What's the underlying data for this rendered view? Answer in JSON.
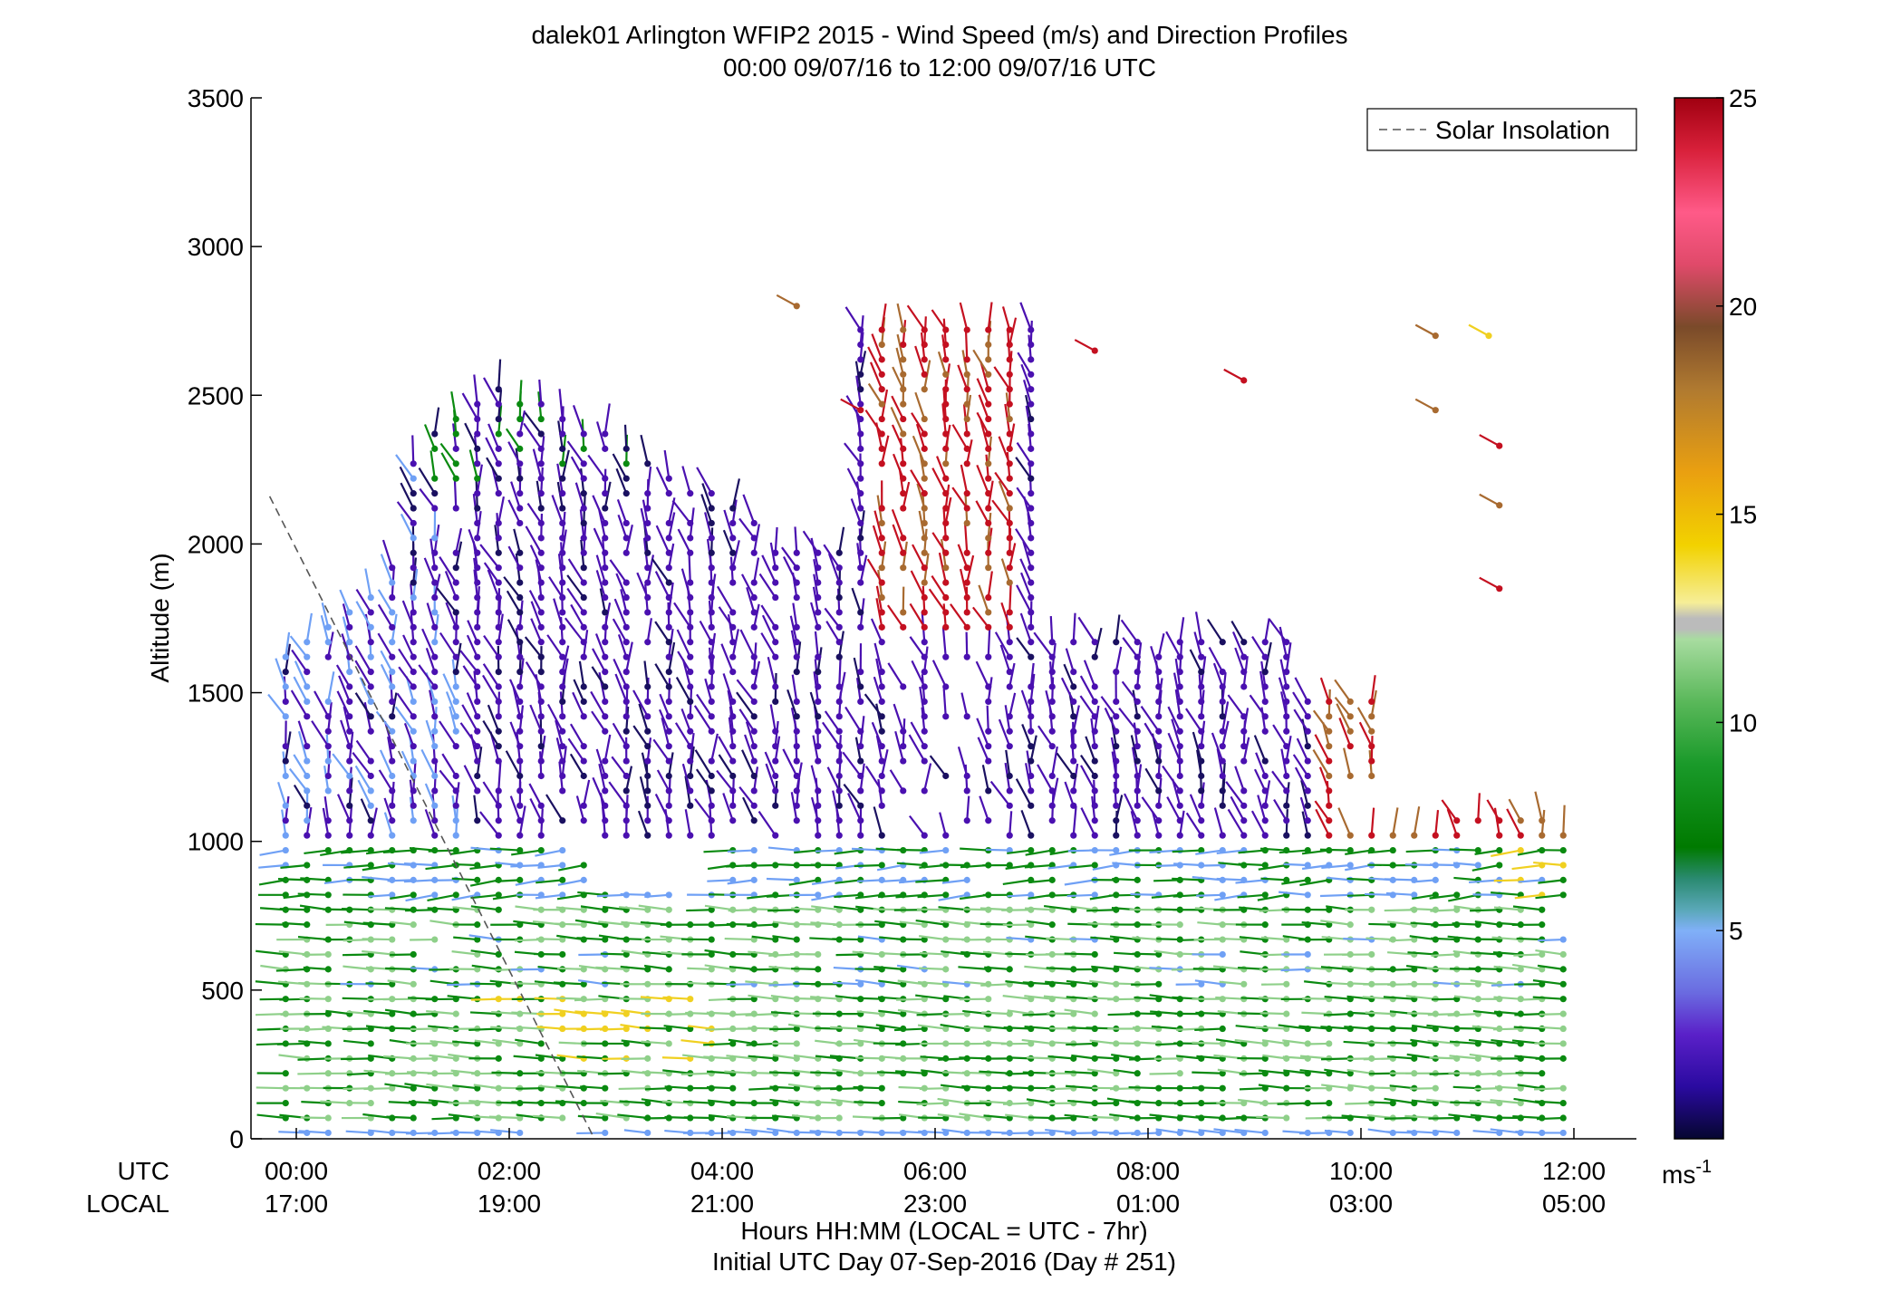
{
  "chart_data": {
    "type": "scatter",
    "title": "dalek01 Arlington WFIP2 2015 - Wind Speed (m/s) and Direction Profiles",
    "subtitle": "00:00 09/07/16 to 12:00 09/07/16  UTC",
    "ylabel": "Altitude (m)",
    "ylim": [
      0,
      3500
    ],
    "yticks": [
      "0",
      "500",
      "1000",
      "1500",
      "2000",
      "2500",
      "3000",
      "3500"
    ],
    "xlim": [
      "00:00",
      "12:00"
    ],
    "x_rows": {
      "utc_label": "UTC",
      "local_label": "LOCAL",
      "utc_ticks": [
        "00:00",
        "02:00",
        "04:00",
        "06:00",
        "08:00",
        "10:00",
        "12:00"
      ],
      "local_ticks": [
        "17:00",
        "19:00",
        "21:00",
        "23:00",
        "01:00",
        "03:00",
        "05:00"
      ]
    },
    "xlabel": "Hours HH:MM  (LOCAL = UTC - 7hr)",
    "xlabel2": "Initial UTC Day 07-Sep-2016 (Day # 251)",
    "legend": {
      "placement": "top-right",
      "entries": [
        "Solar Insolation"
      ]
    },
    "colorbar": {
      "ticks": [
        "5",
        "10",
        "15",
        "20",
        "25"
      ],
      "unit": "ms",
      "unit_exp": "-1",
      "range": [
        0,
        25
      ]
    },
    "solar_insolation_line": [
      {
        "hour": -0.25,
        "altitude": 2160
      },
      {
        "hour": 2.8,
        "altitude": 0
      }
    ],
    "colors": {
      "slow_purple": "#4a10b0",
      "medium_blue": "#6fa0f5",
      "green": "#0a8a10",
      "light_green": "#8fd08a",
      "yellow": "#f0d020",
      "brown": "#a86a30",
      "red": "#c41020"
    },
    "description": "Wind barbs plotted at ~15 min intervals and ~50 m range gates; color encodes speed (colorbar 0-25 m/s)."
  }
}
